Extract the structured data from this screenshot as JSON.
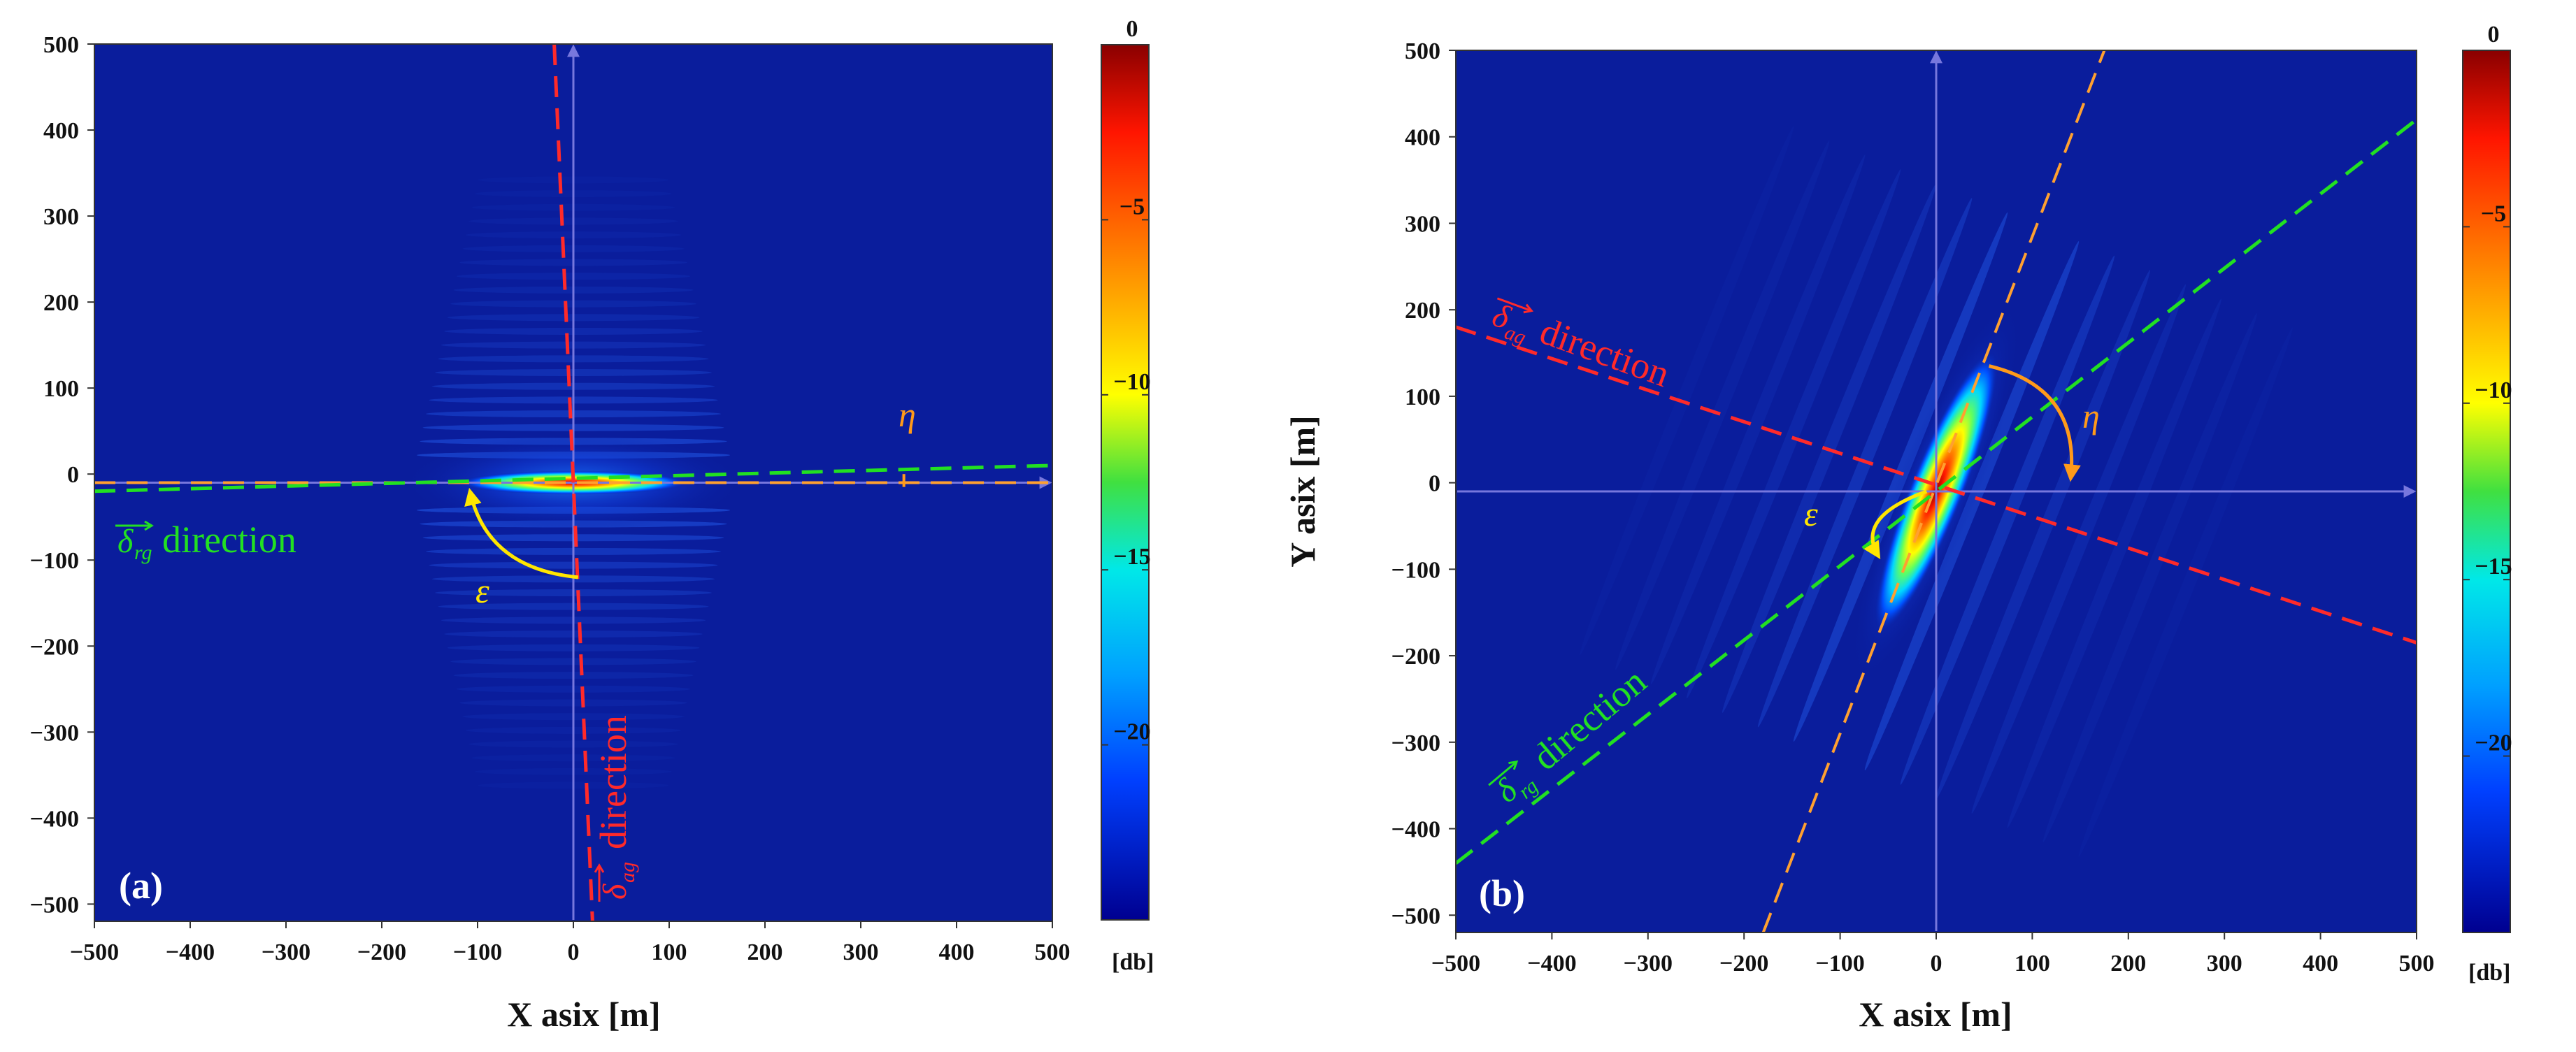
{
  "colors": {
    "background": "#0a1d9c",
    "red_line": "#ff2a2a",
    "green_line": "#22e022",
    "orange_line": "#ffa030",
    "axis_arrow": "#7777dd",
    "epsilon_arrow": "#ffe600",
    "eta_arrow": "#ff9a1a",
    "colormap": [
      "#00008f",
      "#0000ff",
      "#0070ff",
      "#00e0ff",
      "#40ffb0",
      "#90ff40",
      "#ffff00",
      "#ff9000",
      "#ff2000",
      "#9a0000"
    ]
  },
  "colorbar": {
    "range": [
      -25,
      0
    ],
    "ticks": [
      "0",
      "−5",
      "−10",
      "−15",
      "−20"
    ],
    "tick_values": [
      0,
      -5,
      -10,
      -15,
      -20
    ],
    "unit": "[db]"
  },
  "chart_data": [
    {
      "type": "heatmap",
      "panel_label": "(a)",
      "xlabel": "X asix  [m]",
      "ylabel": "",
      "xlim": [
        -500,
        500
      ],
      "ylim": [
        -520,
        500
      ],
      "x_ticks": [
        "−500",
        "−400",
        "−300",
        "−200",
        "−100",
        "0",
        "100",
        "200",
        "300",
        "400",
        "500"
      ],
      "y_ticks": [
        "500",
        "400",
        "300",
        "200",
        "100",
        "0",
        "−100",
        "−200",
        "−300",
        "−400",
        "−500"
      ],
      "peak": {
        "x": 0,
        "y": -10,
        "value_db": 0
      },
      "mainlobe": {
        "semi_axis_x": 120,
        "semi_axis_y": 14,
        "angle_deg": 0
      },
      "sidelobes": "horizontal stripes along Y axis",
      "lines": {
        "azimuth_direction": {
          "label": "direction",
          "symbol": "δ",
          "subscript": "ag",
          "points": [
            [
              -20,
              500
            ],
            [
              20,
              -520
            ]
          ]
        },
        "range_direction": {
          "label": "direction",
          "symbol": "δ",
          "subscript": "rg",
          "points": [
            [
              -500,
              -20
            ],
            [
              500,
              10
            ]
          ]
        },
        "orange_axis": {
          "points": [
            [
              -500,
              -10
            ],
            [
              500,
              -10
            ]
          ]
        }
      },
      "angles": {
        "epsilon": "ε",
        "eta": "η"
      }
    },
    {
      "type": "heatmap",
      "panel_label": "(b)",
      "xlabel": "X asix  [m]",
      "ylabel": "Y asix  [m]",
      "xlim": [
        -500,
        500
      ],
      "ylim": [
        -520,
        500
      ],
      "x_ticks": [
        "−500",
        "−400",
        "−300",
        "−200",
        "−100",
        "0",
        "100",
        "200",
        "300",
        "400",
        "500"
      ],
      "y_ticks": [
        "500",
        "400",
        "300",
        "200",
        "100",
        "0",
        "−100",
        "−200",
        "−300",
        "−400",
        "−500"
      ],
      "peak": {
        "x": 0,
        "y": -10,
        "value_db": 0
      },
      "mainlobe": {
        "semi_axis_x": 28,
        "semi_axis_y": 175,
        "angle_deg": 22
      },
      "sidelobes": "oblique stripes along main lobe",
      "lines": {
        "azimuth_direction": {
          "label": "direction",
          "symbol": "δ",
          "subscript": "ag",
          "points": [
            [
              -500,
              180
            ],
            [
              500,
              -185
            ]
          ]
        },
        "range_direction": {
          "label": "direction",
          "symbol": "δ",
          "subscript": "rg",
          "points": [
            [
              -500,
              -440
            ],
            [
              500,
              420
            ]
          ]
        },
        "orange_axis": {
          "points": [
            [
              -180,
              -520
            ],
            [
              175,
              500
            ]
          ]
        }
      },
      "angles": {
        "epsilon": "ε",
        "eta": "η"
      }
    }
  ]
}
